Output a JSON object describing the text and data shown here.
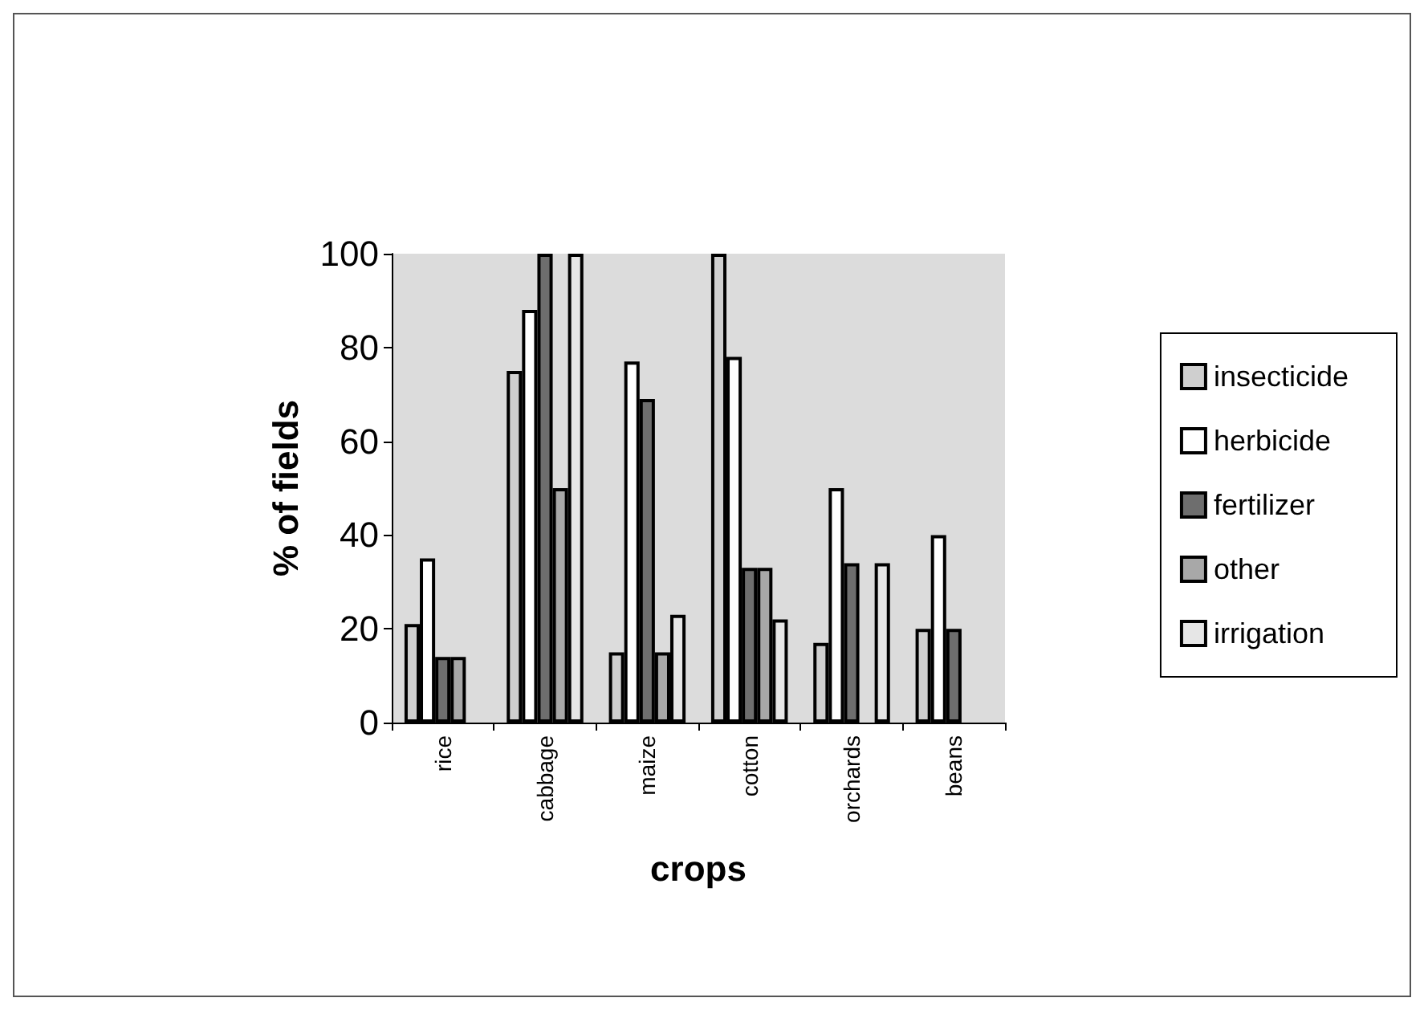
{
  "chart_data": {
    "type": "bar",
    "xlabel": "crops",
    "ylabel": "% of fields",
    "categories": [
      "rice",
      "cabbage",
      "maize",
      "cotton",
      "orchards",
      "beans"
    ],
    "series": [
      {
        "name": "insecticide",
        "color": "#cfcfcf",
        "values": [
          21,
          75,
          15,
          100,
          17,
          20
        ]
      },
      {
        "name": "herbicide",
        "color": "#ffffff",
        "values": [
          35,
          88,
          77,
          78,
          50,
          40
        ]
      },
      {
        "name": "fertilizer",
        "color": "#6e6e6e",
        "values": [
          14,
          100,
          69,
          33,
          34,
          20
        ]
      },
      {
        "name": "other",
        "color": "#a8a8a8",
        "values": [
          14,
          50,
          15,
          33,
          null,
          null
        ]
      },
      {
        "name": "irrigation",
        "color": "#e6e6e6",
        "values": [
          null,
          100,
          23,
          22,
          34,
          null
        ]
      }
    ],
    "ylim": [
      0,
      100
    ],
    "yticks": [
      0,
      20,
      40,
      60,
      80,
      100
    ],
    "grid": false,
    "legend": "right"
  }
}
